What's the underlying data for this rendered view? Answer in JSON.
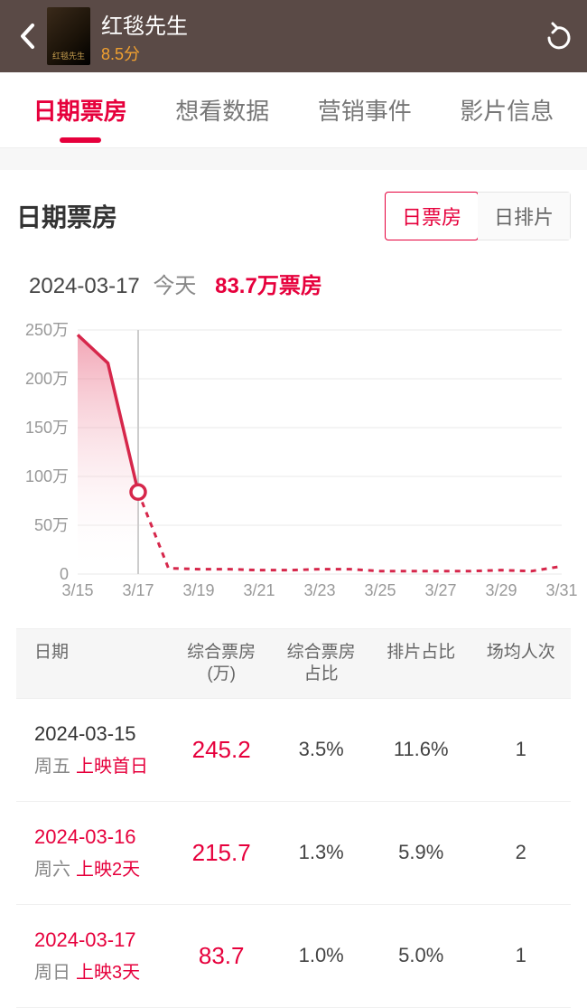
{
  "header": {
    "movie_title": "红毯先生",
    "rating": "8.5分",
    "poster_caption": "红毯先生"
  },
  "tabs": [
    {
      "label": "日期票房",
      "active": true
    },
    {
      "label": "想看数据",
      "active": false
    },
    {
      "label": "营销事件",
      "active": false
    },
    {
      "label": "影片信息",
      "active": false
    }
  ],
  "card": {
    "title": "日期票房",
    "toggle": [
      {
        "label": "日票房",
        "active": true
      },
      {
        "label": "日排片",
        "active": false
      }
    ],
    "date": "2024-03-17",
    "today_label": "今天",
    "value_text": "83.7万票房"
  },
  "chart": {
    "type": "area-line",
    "y_ticks": [
      "250万",
      "200万",
      "150万",
      "100万",
      "50万",
      "0"
    ],
    "y_min": 0,
    "y_max": 250,
    "grid_color": "#e9e9e9",
    "axis_text_color": "#999999",
    "axis_fontsize": 18,
    "line_color": "#d6274b",
    "fill_color_top": "#e96a84",
    "fill_color_bottom": "#ffffff",
    "marker_radius": 8,
    "x_labels": [
      "3/15",
      "3/17",
      "3/19",
      "3/21",
      "3/23",
      "3/25",
      "3/27",
      "3/29",
      "3/31"
    ],
    "current_x_label": "3/17",
    "current_vline_color": "#cccccc",
    "solid_points": [
      {
        "xlabel": "3/15",
        "y": 245
      },
      {
        "xlabel": "3/16",
        "y": 216
      },
      {
        "xlabel": "3/17",
        "y": 84
      }
    ],
    "dashed_points": [
      {
        "xlabel": "3/17",
        "y": 84
      },
      {
        "xlabel": "3/18",
        "y": 6
      },
      {
        "xlabel": "3/19",
        "y": 5
      },
      {
        "xlabel": "3/20",
        "y": 5
      },
      {
        "xlabel": "3/21",
        "y": 4
      },
      {
        "xlabel": "3/22",
        "y": 4
      },
      {
        "xlabel": "3/23",
        "y": 5
      },
      {
        "xlabel": "3/24",
        "y": 5
      },
      {
        "xlabel": "3/25",
        "y": 3
      },
      {
        "xlabel": "3/26",
        "y": 3
      },
      {
        "xlabel": "3/27",
        "y": 3
      },
      {
        "xlabel": "3/28",
        "y": 3
      },
      {
        "xlabel": "3/29",
        "y": 4
      },
      {
        "xlabel": "3/30",
        "y": 3
      },
      {
        "xlabel": "3/31",
        "y": 8
      }
    ]
  },
  "table": {
    "columns": [
      "日期",
      "综合票房\n(万)",
      "综合票房\n占比",
      "排片占比",
      "场均人次"
    ],
    "rows": [
      {
        "date": "2024-03-15",
        "weekday": "周五",
        "day_label": "上映首日",
        "box": "245.2",
        "share": "3.5%",
        "screen": "11.6%",
        "avg": "1",
        "current": false
      },
      {
        "date": "2024-03-16",
        "weekday": "周六",
        "day_label": "上映2天",
        "box": "215.7",
        "share": "1.3%",
        "screen": "5.9%",
        "avg": "2",
        "current": true
      },
      {
        "date": "2024-03-17",
        "weekday": "周日",
        "day_label": "上映3天",
        "box": "83.7",
        "share": "1.0%",
        "screen": "5.0%",
        "avg": "1",
        "current": true
      }
    ]
  },
  "colors": {
    "accent": "#e6003c",
    "header_bg": "#5a4a46",
    "rating": "#f0a030"
  }
}
